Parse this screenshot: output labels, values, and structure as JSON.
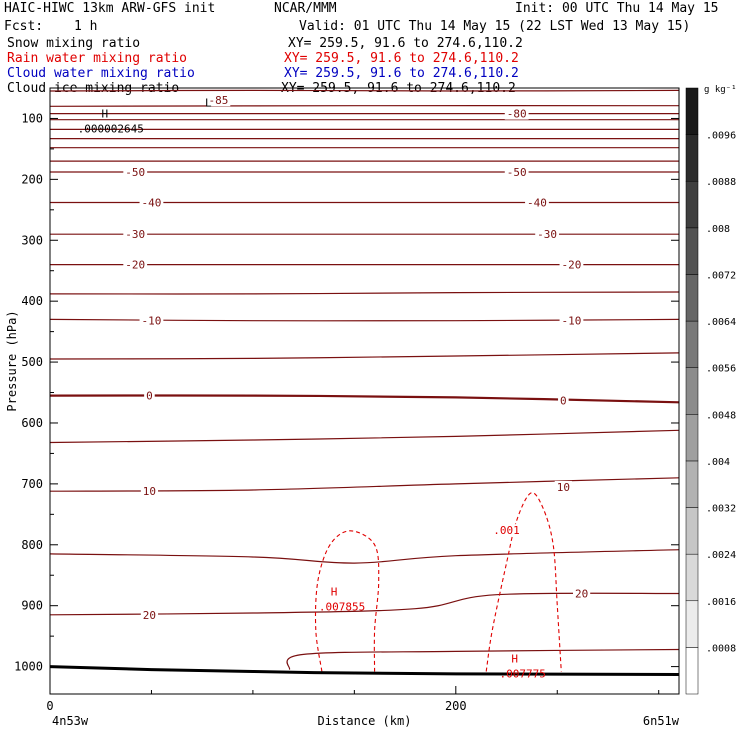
{
  "header": {
    "title": "HAIC-HIWC 13km ARW-GFS init",
    "org": "NCAR/MMM",
    "init": "Init: 00 UTC Thu 14 May 15",
    "fcst_label": "Fcst:",
    "fcst_value": "1 h",
    "valid": "Valid: 01 UTC Thu 14 May 15 (22 LST Wed 13 May 15)",
    "fields": [
      {
        "name": "Snow mixing ratio",
        "xy": "XY= 259.5, 91.6 to 274.6,110.2",
        "color": "#000000"
      },
      {
        "name": "Rain water mixing ratio",
        "xy": "XY= 259.5, 91.6 to 274.6,110.2",
        "color": "#e00000"
      },
      {
        "name": "Cloud water mixing ratio",
        "xy": "XY= 259.5, 91.6 to 274.6,110.2",
        "color": "#0000c0"
      },
      {
        "name": "Cloud ice mixing ratio",
        "xy": "XY= 259.5, 91.6 to 274.6,110.2",
        "color": "#000000"
      }
    ]
  },
  "chart_data": {
    "type": "cross-section contour",
    "xlabel": "Distance (km)",
    "ylabel": "Pressure (hPa)",
    "xlim": [
      0,
      310
    ],
    "ylim": [
      1045,
      50
    ],
    "x_ticks": [
      0,
      200
    ],
    "y_ticks": [
      100,
      200,
      300,
      400,
      500,
      600,
      700,
      800,
      900,
      1000
    ],
    "start_label": "4n53w",
    "end_label": "6n51w",
    "colorbar": {
      "unit": "g kg⁻¹",
      "levels": [
        ".0008",
        ".0016",
        ".0024",
        ".0032",
        ".004",
        ".0048",
        ".0056",
        ".0064",
        ".0072",
        ".008",
        ".0088",
        ".0096"
      ]
    },
    "temperature_contours": [
      {
        "label": "-85",
        "points": [
          [
            0,
            55
          ],
          [
            100,
            54
          ],
          [
            200,
            55
          ],
          [
            310,
            54
          ]
        ],
        "label_at": [
          83,
          70
        ]
      },
      {
        "label": "",
        "points": [
          [
            0,
            80
          ],
          [
            150,
            79
          ],
          [
            310,
            79
          ]
        ]
      },
      {
        "label": "-80",
        "points": [
          [
            0,
            92
          ],
          [
            100,
            92
          ],
          [
            200,
            92
          ],
          [
            310,
            92
          ]
        ],
        "label_at": [
          230,
          92
        ]
      },
      {
        "label": "",
        "points": [
          [
            0,
            102
          ],
          [
            150,
            102
          ],
          [
            310,
            102
          ]
        ]
      },
      {
        "label": "",
        "points": [
          [
            0,
            118
          ],
          [
            150,
            118
          ],
          [
            310,
            118
          ]
        ]
      },
      {
        "label": "",
        "points": [
          [
            0,
            133
          ],
          [
            150,
            133
          ],
          [
            310,
            133
          ]
        ]
      },
      {
        "label": "",
        "points": [
          [
            0,
            148
          ],
          [
            150,
            148
          ],
          [
            310,
            148
          ]
        ]
      },
      {
        "label": "",
        "points": [
          [
            0,
            170
          ],
          [
            150,
            170
          ],
          [
            310,
            170
          ]
        ]
      },
      {
        "label": "-50",
        "points": [
          [
            0,
            188
          ],
          [
            100,
            188
          ],
          [
            200,
            188
          ],
          [
            310,
            188
          ]
        ],
        "label_at": [
          42,
          188
        ],
        "label_at2": [
          230,
          188
        ]
      },
      {
        "label": "-40",
        "points": [
          [
            0,
            238
          ],
          [
            100,
            238
          ],
          [
            200,
            238
          ],
          [
            310,
            238
          ]
        ],
        "label_at": [
          50,
          238
        ],
        "label_at2": [
          240,
          238
        ]
      },
      {
        "label": "-30",
        "points": [
          [
            0,
            290
          ],
          [
            100,
            290
          ],
          [
            200,
            290
          ],
          [
            310,
            290
          ]
        ],
        "label_at": [
          42,
          290
        ],
        "label_at2": [
          245,
          290
        ]
      },
      {
        "label": "-20",
        "points": [
          [
            0,
            340
          ],
          [
            100,
            340
          ],
          [
            200,
            340
          ],
          [
            310,
            340
          ]
        ],
        "label_at": [
          42,
          340
        ],
        "label_at2": [
          257,
          340
        ]
      },
      {
        "label": "",
        "points": [
          [
            0,
            388
          ],
          [
            100,
            388
          ],
          [
            200,
            386
          ],
          [
            310,
            385
          ]
        ]
      },
      {
        "label": "-10",
        "points": [
          [
            0,
            430
          ],
          [
            100,
            432
          ],
          [
            200,
            432
          ],
          [
            310,
            430
          ]
        ],
        "label_at": [
          50,
          432
        ],
        "label_at2": [
          257,
          432
        ]
      },
      {
        "label": "",
        "points": [
          [
            0,
            495
          ],
          [
            100,
            494
          ],
          [
            200,
            490
          ],
          [
            310,
            485
          ]
        ]
      },
      {
        "label": "0",
        "points": [
          [
            0,
            555
          ],
          [
            100,
            555
          ],
          [
            200,
            558
          ],
          [
            310,
            566
          ]
        ],
        "label_at": [
          49,
          555
        ],
        "label_at2": [
          253,
          563
        ],
        "heavy": true
      },
      {
        "label": "",
        "points": [
          [
            0,
            632
          ],
          [
            100,
            628
          ],
          [
            200,
            622
          ],
          [
            310,
            612
          ]
        ]
      },
      {
        "label": "10",
        "points": [
          [
            0,
            712
          ],
          [
            100,
            710
          ],
          [
            200,
            700
          ],
          [
            310,
            690
          ]
        ],
        "label_at": [
          49,
          712
        ],
        "label_at2": [
          253,
          705
        ]
      },
      {
        "label": "",
        "points": [
          [
            0,
            815
          ],
          [
            100,
            820
          ],
          [
            150,
            830
          ],
          [
            200,
            818
          ],
          [
            310,
            808
          ]
        ]
      },
      {
        "label": "20",
        "points": [
          [
            0,
            915
          ],
          [
            100,
            912
          ],
          [
            180,
            905
          ],
          [
            220,
            882
          ],
          [
            310,
            880
          ]
        ],
        "label_at": [
          49,
          915
        ],
        "label_at2": [
          262,
          880
        ]
      },
      {
        "label": "",
        "points": [
          [
            118,
            1005
          ],
          [
            125,
            980
          ],
          [
            200,
            975
          ],
          [
            310,
            972
          ]
        ]
      }
    ],
    "terrain_line": [
      [
        0,
        1000
      ],
      [
        50,
        1005
      ],
      [
        100,
        1008
      ],
      [
        130,
        1010
      ],
      [
        200,
        1012
      ],
      [
        310,
        1013
      ]
    ],
    "rain_contours": [
      {
        "label": "",
        "points": [
          [
            134,
            1008
          ],
          [
            131,
            940
          ],
          [
            132,
            860
          ],
          [
            138,
            800
          ],
          [
            148,
            777
          ],
          [
            160,
            800
          ],
          [
            162,
            860
          ],
          [
            160,
            940
          ],
          [
            160,
            1008
          ]
        ]
      },
      {
        "label": ".001",
        "points": [
          [
            215,
            1008
          ],
          [
            218,
            940
          ],
          [
            225,
            830
          ],
          [
            230,
            760
          ],
          [
            237,
            715
          ],
          [
            243,
            740
          ],
          [
            248,
            800
          ],
          [
            250,
            900
          ],
          [
            252,
            1008
          ]
        ],
        "label_at": [
          225,
          776
        ]
      }
    ],
    "extrema": [
      {
        "type": "L",
        "x": 78,
        "p": 85,
        "value": ""
      },
      {
        "type": "H",
        "x": 27,
        "p": 103,
        "value": ".000002645"
      },
      {
        "type": "H",
        "x": 140,
        "p": 888,
        "value": ".007855"
      },
      {
        "type": "H",
        "x": 229,
        "p": 998,
        "value": ".007775"
      }
    ]
  }
}
